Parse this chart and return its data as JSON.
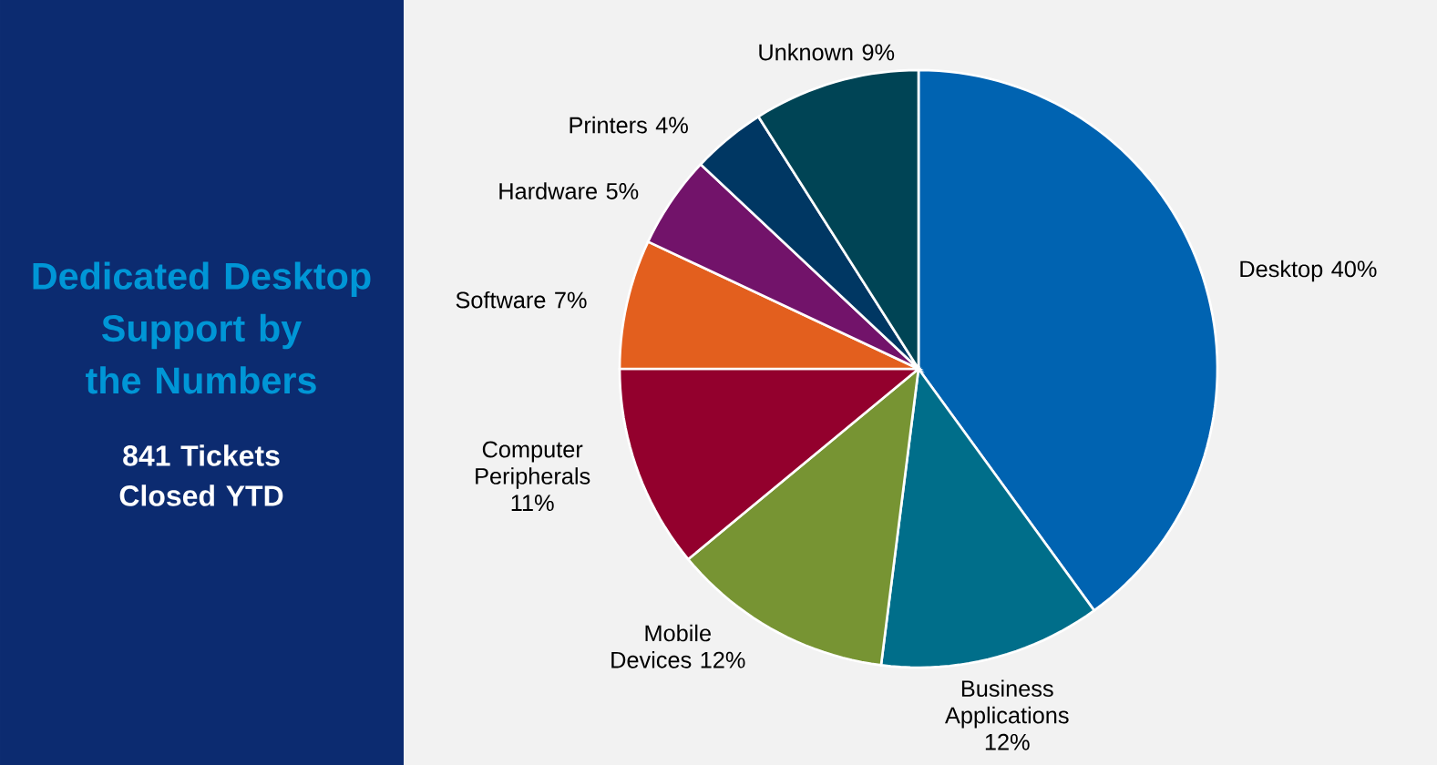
{
  "chart_data": {
    "type": "pie",
    "title": "Dedicated Desktop Support by the Numbers",
    "subtitle": "841 Tickets Closed YTD",
    "categories": [
      "Desktop",
      "Business Applications",
      "Mobile Devices",
      "Computer Peripherals",
      "Software",
      "Hardware",
      "Printers",
      "Unknown"
    ],
    "values": [
      40,
      12,
      12,
      11,
      7,
      5,
      4,
      9
    ],
    "value_labels": [
      "40%",
      "12%",
      "12%",
      "11%",
      "7%",
      "5%",
      "4%",
      "9%"
    ],
    "colors": [
      "#0063b1",
      "#006e8a",
      "#779433",
      "#93002d",
      "#e35f1e",
      "#72136a",
      "#003763",
      "#004455"
    ]
  }
}
